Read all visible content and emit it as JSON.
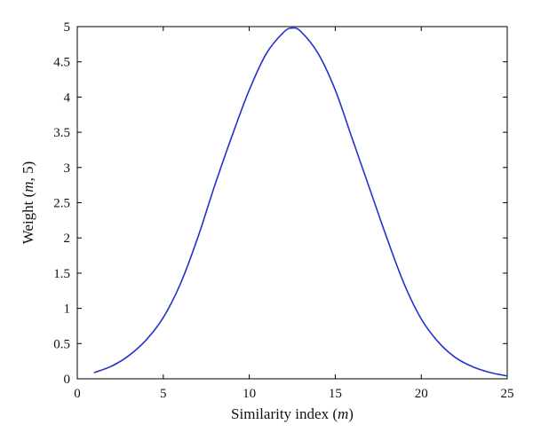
{
  "chart_data": {
    "type": "line",
    "title": "",
    "xlabel": "Similarity index (m)",
    "ylabel": "Weight (m, 5)",
    "xlabel_parts": [
      {
        "text": "Similarity index (",
        "italic": false
      },
      {
        "text": "m",
        "italic": true
      },
      {
        "text": ")",
        "italic": false
      }
    ],
    "ylabel_parts": [
      {
        "text": "Weight (",
        "italic": false
      },
      {
        "text": "m",
        "italic": true
      },
      {
        "text": ", 5)",
        "italic": false
      }
    ],
    "xlim": [
      0,
      25
    ],
    "ylim": [
      0,
      5
    ],
    "xticks": [
      0,
      5,
      10,
      15,
      20,
      25
    ],
    "yticks": [
      0,
      0.5,
      1,
      1.5,
      2,
      2.5,
      3,
      3.5,
      4,
      4.5,
      5
    ],
    "grid": false,
    "line_color": "#2233cc",
    "series": [
      {
        "x": [
          1,
          2,
          3,
          4,
          5,
          6,
          7,
          8,
          9,
          10,
          11,
          12,
          12.5,
          13,
          14,
          15,
          16,
          17,
          18,
          19,
          20,
          21,
          22,
          23,
          24,
          25
        ],
        "y": [
          0.09,
          0.18,
          0.33,
          0.55,
          0.87,
          1.35,
          2.0,
          2.75,
          3.45,
          4.1,
          4.62,
          4.92,
          4.98,
          4.93,
          4.62,
          4.1,
          3.4,
          2.7,
          2.0,
          1.35,
          0.85,
          0.52,
          0.3,
          0.17,
          0.09,
          0.04
        ]
      }
    ]
  }
}
